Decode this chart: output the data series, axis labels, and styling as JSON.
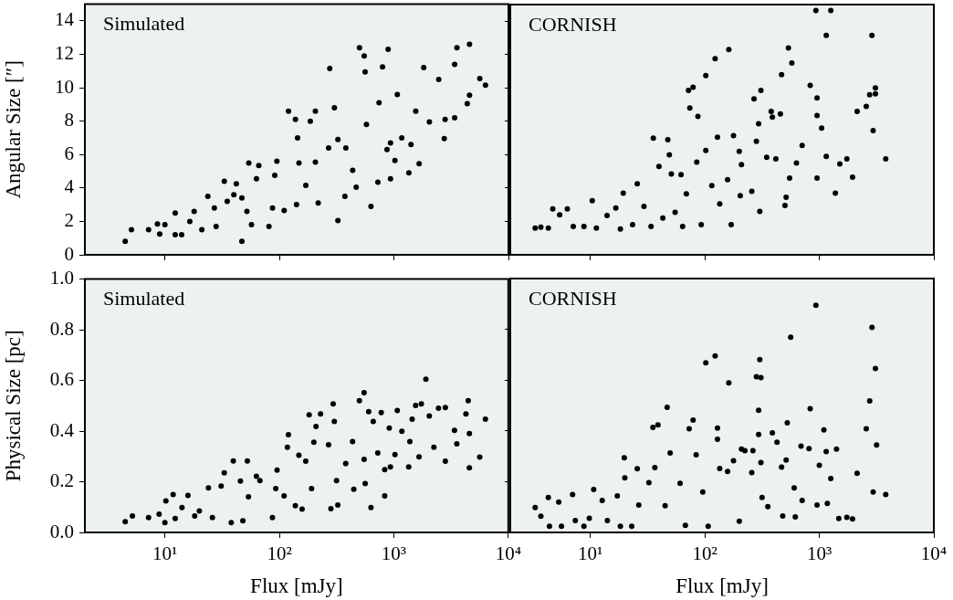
{
  "chart_data": [
    {
      "type": "scatter",
      "ylabel": "Angular Size [″]",
      "annotations": [
        "Simulated"
      ],
      "log": "x",
      "marker": "circle",
      "tick_labels": "y",
      "xlim": [
        2,
        10000
      ],
      "xticks": [
        {
          "value": 10,
          "label": null
        },
        {
          "value": 100,
          "label": null
        },
        {
          "value": 1000,
          "label": null
        },
        {
          "value": 10000,
          "label": null
        }
      ],
      "ylim": [
        0,
        15
      ],
      "yticks": [
        0,
        2,
        4,
        6,
        8,
        10,
        12,
        14
      ],
      "series": [
        {
          "color": "#000000",
          "x": [
            4.5,
            5.1,
            7.2,
            8.6,
            9,
            10,
            12.3,
            14,
            12.3,
            16.5,
            18,
            21,
            23.7,
            28,
            27,
            33,
            35,
            40,
            42,
            47,
            47,
            52,
            54,
            57,
            63,
            66,
            81,
            87,
            91,
            95,
            120,
            110,
            138,
            141,
            144,
            148,
            170,
            186,
            206,
            218,
            206,
            275,
            302,
            269,
            324,
            324,
            380,
            373,
            500,
            550,
            560,
            436,
            468,
            575,
            630,
            741,
            795,
            890,
            724,
            870,
            933,
            933,
            1070,
            1020,
            1170,
            1350,
            1410,
            1550,
            1660,
            1820,
            2040,
            2460,
            2750,
            2800,
            3390,
            3390,
            3550,
            4370,
            4570,
            4570,
            5620,
            6300
          ],
          "values": [
            0.8,
            1.5,
            1.5,
            1.85,
            1.25,
            1.8,
            1.2,
            1.2,
            2.5,
            2.0,
            2.6,
            1.5,
            3.5,
            1.7,
            2.8,
            4.4,
            3.2,
            3.6,
            4.25,
            0.8,
            3.4,
            2.6,
            5.5,
            1.8,
            4.55,
            5.35,
            1.7,
            2.8,
            4.75,
            5.6,
            8.6,
            2.65,
            8.1,
            3.0,
            7.0,
            5.5,
            4.15,
            8.0,
            8.6,
            3.1,
            5.55,
            11.15,
            8.8,
            6.4,
            2.05,
            6.9,
            6.4,
            3.5,
            12.4,
            11.9,
            10.95,
            5.05,
            4.05,
            7.8,
            2.9,
            9.1,
            11.25,
            12.3,
            4.35,
            6.3,
            6.7,
            4.55,
            9.6,
            5.65,
            7.0,
            4.9,
            6.6,
            8.6,
            5.45,
            11.2,
            7.95,
            10.5,
            6.95,
            8.1,
            11.4,
            8.2,
            12.4,
            9.05,
            9.55,
            12.6,
            10.55,
            10.15
          ]
        }
      ]
    },
    {
      "type": "scatter",
      "annotations": [
        "CORNISH"
      ],
      "log": "x",
      "marker": "circle",
      "tick_labels": false,
      "xlim": [
        2,
        10000
      ],
      "xticks": [
        {
          "value": 10,
          "label": null
        },
        {
          "value": 100,
          "label": null
        },
        {
          "value": 1000,
          "label": null
        },
        {
          "value": 10000,
          "label": null
        }
      ],
      "ylim": [
        0,
        15
      ],
      "yticks": [
        {
          "value": 0,
          "label": null
        },
        {
          "value": 2,
          "label": null
        },
        {
          "value": 4,
          "label": null
        },
        {
          "value": 6,
          "label": null
        },
        {
          "value": 8,
          "label": null
        },
        {
          "value": 10,
          "label": null
        },
        {
          "value": 12,
          "label": null
        },
        {
          "value": 14,
          "label": null
        }
      ],
      "series": [
        {
          "color": "#000000",
          "x": [
            3.3,
            3.7,
            4.3,
            4.7,
            5.4,
            6.3,
            7.1,
            8.8,
            10.4,
            11.3,
            14,
            16.7,
            19.4,
            18.3,
            23.4,
            25.7,
            29.4,
            35.5,
            33.9,
            39.8,
            43,
            47.5,
            49,
            51,
            55,
            62,
            64,
            72,
            79,
            74,
            69,
            87,
            85,
            93,
            102,
            102,
            115,
            123,
            129,
            135,
            162,
            158,
            170,
            178,
            200,
            209,
            204,
            257,
            269,
            282,
            295,
            309,
            302,
            347,
            380,
            389,
            417,
            457,
            468,
            501,
            513,
            537,
            550,
            575,
            631,
            708,
            832,
            933,
            955,
            955,
            955,
            1047,
            1150,
            1150,
            1260,
            1380,
            1510,
            1740,
            1950,
            2140,
            2570,
            2750,
            2880,
            2950,
            3090,
            3090,
            3800
          ],
          "values": [
            1.6,
            1.65,
            1.6,
            2.75,
            2.4,
            2.75,
            1.7,
            1.7,
            3.25,
            1.6,
            2.35,
            2.8,
            3.7,
            1.55,
            1.8,
            4.25,
            2.9,
            7.0,
            1.7,
            5.3,
            2.2,
            6.9,
            6.0,
            4.85,
            2.55,
            4.8,
            1.7,
            9.85,
            10.05,
            8.8,
            3.65,
            8.3,
            5.55,
            1.8,
            10.75,
            6.25,
            4.15,
            11.75,
            7.05,
            3.05,
            12.3,
            4.5,
            1.8,
            7.15,
            6.2,
            5.4,
            3.55,
            3.8,
            9.35,
            6.8,
            7.85,
            9.85,
            2.6,
            5.85,
            8.6,
            8.25,
            5.75,
            8.45,
            10.8,
            2.95,
            3.45,
            12.4,
            4.6,
            11.5,
            5.5,
            6.55,
            10.15,
            14.65,
            4.6,
            8.35,
            9.4,
            7.6,
            5.9,
            13.15,
            14.65,
            3.7,
            5.45,
            5.75,
            4.65,
            8.6,
            8.9,
            9.6,
            13.15,
            7.45,
            10.0,
            9.65,
            5.75
          ]
        }
      ]
    },
    {
      "type": "scatter",
      "xlabel": "Flux [mJy]",
      "ylabel": "Physical Size [pc]",
      "annotations": [
        "Simulated"
      ],
      "log": "x",
      "marker": "circle",
      "xlim": [
        2,
        10000
      ],
      "xticks": [
        {
          "value": 10,
          "label": "10¹"
        },
        {
          "value": 100,
          "label": "10²"
        },
        {
          "value": 1000,
          "label": "10³"
        },
        {
          "value": 10000,
          "label": "10⁴"
        }
      ],
      "ylim": [
        0,
        1
      ],
      "yticks": [
        {
          "value": 0,
          "label": "0.0"
        },
        {
          "value": 0.2,
          "label": "0.2"
        },
        {
          "value": 0.4,
          "label": "0.4"
        },
        {
          "value": 0.6,
          "label": "0.6"
        },
        {
          "value": 0.8,
          "label": "0.8"
        },
        {
          "value": 1,
          "label": "1.0"
        }
      ],
      "series": [
        {
          "color": "#000000",
          "x": [
            4.5,
            5.2,
            7.2,
            8.9,
            10,
            10.2,
            11.8,
            12.3,
            14.1,
            15.9,
            18.2,
            20,
            24,
            26,
            31,
            33,
            39.6,
            38,
            45.7,
            48,
            52.5,
            53.7,
            63,
            67.6,
            87,
            95.5,
            93,
            110,
            120,
            117.5,
            138,
            148,
            158,
            170,
            182,
            191,
            200,
            209,
            229,
            269,
            282,
            295,
            302,
            316,
            324,
            380,
            436,
            447,
            500,
            550,
            550,
            562,
            603,
            631,
            661,
            724,
            776,
            832,
            832,
            912,
            933,
            1023,
            1072,
            1175,
            1349,
            1380,
            1445,
            1549,
            1660,
            1738,
            1905,
            2042,
            2239,
            2455,
            2818,
            2818,
            3388,
            3548,
            4266,
            4467,
            4571,
            4571,
            5623,
            6310
          ],
          "values": [
            0.042,
            0.065,
            0.059,
            0.072,
            0.039,
            0.124,
            0.15,
            0.055,
            0.098,
            0.146,
            0.065,
            0.085,
            0.176,
            0.059,
            0.183,
            0.235,
            0.282,
            0.039,
            0.203,
            0.046,
            0.282,
            0.141,
            0.222,
            0.205,
            0.059,
            0.246,
            0.173,
            0.144,
            0.386,
            0.336,
            0.105,
            0.305,
            0.092,
            0.281,
            0.464,
            0.173,
            0.356,
            0.418,
            0.468,
            0.346,
            0.094,
            0.507,
            0.438,
            0.205,
            0.108,
            0.272,
            0.359,
            0.17,
            0.52,
            0.552,
            0.288,
            0.193,
            0.477,
            0.098,
            0.438,
            0.314,
            0.473,
            0.248,
            0.144,
            0.412,
            0.259,
            0.307,
            0.481,
            0.399,
            0.259,
            0.359,
            0.447,
            0.501,
            0.298,
            0.507,
            0.605,
            0.46,
            0.336,
            0.49,
            0.493,
            0.281,
            0.403,
            0.35,
            0.468,
            0.52,
            0.39,
            0.255,
            0.297,
            0.447
          ]
        }
      ]
    },
    {
      "type": "scatter",
      "xlabel": "Flux [mJy]",
      "annotations": [
        "CORNISH"
      ],
      "log": "x",
      "marker": "circle",
      "tick_labels": "x",
      "xlim": [
        2,
        10000
      ],
      "xticks": [
        {
          "value": 10,
          "label": "10¹"
        },
        {
          "value": 100,
          "label": "10²"
        },
        {
          "value": 1000,
          "label": "10³"
        },
        {
          "value": 10000,
          "label": "10⁴"
        }
      ],
      "ylim": [
        0,
        1
      ],
      "yticks": [
        {
          "value": 0,
          "label": null
        },
        {
          "value": 0.2,
          "label": null
        },
        {
          "value": 0.4,
          "label": null
        },
        {
          "value": 0.6,
          "label": null
        },
        {
          "value": 0.8,
          "label": null
        },
        {
          "value": 1,
          "label": null
        }
      ],
      "series": [
        {
          "color": "#000000",
          "x": [
            3.3,
            3.7,
            4.3,
            4.4,
            5.3,
            5.6,
            7.0,
            7.4,
            8.8,
            10.7,
            9.8,
            12.7,
            14.1,
            17.2,
            19.8,
            20,
            18.3,
            23,
            25.7,
            26.5,
            32.5,
            35.2,
            36.6,
            39,
            46.9,
            45,
            49.8,
            60.8,
            73,
            67.6,
            79,
            84,
            96,
            102,
            107,
            123,
            129,
            129,
            135,
            162,
            158,
            178,
            200,
            209,
            224,
            263,
            257,
            295,
            295,
            282,
            309,
            302,
            309,
            316,
            355,
            389,
            427,
            468,
            479,
            513,
            525,
            562,
            603,
            617,
            692,
            708,
            813,
            832,
            933,
            955,
            1000,
            1096,
            1148,
            1175,
            1259,
            1413,
            1479,
            1738,
            1950,
            2138,
            2570,
            2754,
            2884,
            2951,
            3090,
            3162,
            3802
          ],
          "values": [
            0.098,
            0.064,
            0.138,
            0.024,
            0.12,
            0.024,
            0.149,
            0.047,
            0.024,
            0.169,
            0.056,
            0.126,
            0.047,
            0.144,
            0.294,
            0.215,
            0.024,
            0.024,
            0.251,
            0.108,
            0.196,
            0.414,
            0.255,
            0.424,
            0.493,
            0.105,
            0.313,
            0.193,
            0.408,
            0.028,
            0.442,
            0.306,
            0.159,
            0.668,
            0.024,
            0.695,
            0.411,
            0.367,
            0.252,
            0.589,
            0.24,
            0.282,
            0.044,
            0.328,
            0.322,
            0.322,
            0.236,
            0.481,
            0.386,
            0.613,
            0.61,
            0.681,
            0.275,
            0.138,
            0.102,
            0.392,
            0.355,
            0.257,
            0.065,
            0.285,
            0.432,
            0.769,
            0.175,
            0.061,
            0.34,
            0.126,
            0.33,
            0.487,
            0.895,
            0.108,
            0.264,
            0.404,
            0.318,
            0.114,
            0.212,
            0.328,
            0.055,
            0.059,
            0.053,
            0.233,
            0.408,
            0.518,
            0.808,
            0.159,
            0.646,
            0.344,
            0.149
          ]
        }
      ]
    }
  ]
}
